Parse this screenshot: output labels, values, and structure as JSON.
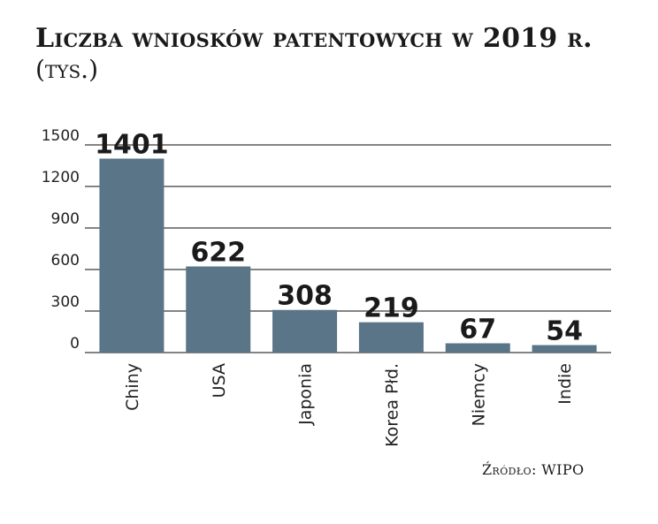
{
  "chart_data": {
    "type": "bar",
    "title": "Liczba wniosków patentowych w 2019 r.",
    "subtitle": "(tys.)",
    "categories": [
      "Chiny",
      "USA",
      "Japonia",
      "Korea Płd.",
      "Niemcy",
      "Indie"
    ],
    "values": [
      1401,
      622,
      308,
      219,
      67,
      54
    ],
    "value_labels": [
      "1401",
      "622",
      "308",
      "219",
      "67",
      "54"
    ],
    "ylim": [
      0,
      1500
    ],
    "yticks": [
      0,
      300,
      600,
      900,
      1200,
      1500
    ],
    "ytick_labels": [
      "0",
      "300",
      "600",
      "900",
      "1200",
      "1500"
    ],
    "grid": true,
    "bar_color": "#5a7488",
    "grid_color": "#3a3a3a",
    "source": "Źródło: WIPO"
  }
}
